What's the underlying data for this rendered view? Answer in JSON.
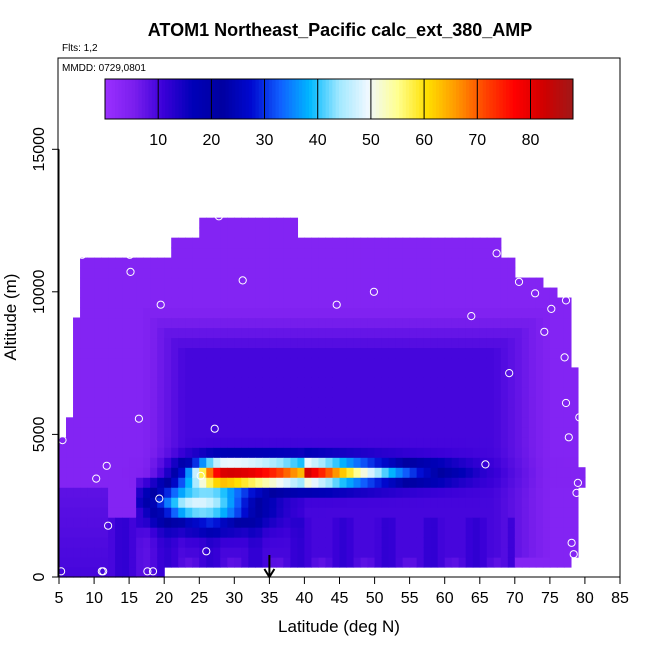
{
  "chart_data": {
    "type": "heatmap",
    "title": "ATOM1 Northeast_Pacific calc_ext_380_AMP",
    "flights_label": "Flts: 1,2",
    "mmdd_label": "MMDD: 0729,0801",
    "xlabel": "Latitude (deg N)",
    "ylabel": "Altitude (m)",
    "xlim": [
      5,
      85
    ],
    "ylim": [
      0,
      18200
    ],
    "x_ticks": [
      "5",
      "10",
      "15",
      "20",
      "25",
      "30",
      "35",
      "40",
      "45",
      "50",
      "55",
      "60",
      "65",
      "70",
      "75",
      "80",
      "85"
    ],
    "y_ticks": [
      "0",
      "5000",
      "10000",
      "15000"
    ],
    "colorbar": {
      "range": [
        0,
        88
      ],
      "ticks": [
        "10",
        "20",
        "30",
        "40",
        "50",
        "60",
        "70",
        "80"
      ],
      "colors": [
        "#9b30ff",
        "#7a1fee",
        "#3a00d8",
        "#0000b8",
        "#0000a0",
        "#0008d0",
        "#1060ff",
        "#00b8ff",
        "#a0e8ff",
        "#f0f8ff",
        "#ffff90",
        "#ffe000",
        "#ff9900",
        "#ff4400",
        "#ff0000",
        "#d00000",
        "#a01818"
      ]
    },
    "arrow_latitude": 35,
    "cell_size": {
      "dlat": 1,
      "dalt": 350
    },
    "field": {
      "description": "extinction values on latitude/altitude grid",
      "layer_center_alt": 3650,
      "layer_peak_value": 82,
      "layer_peak_lat": 29,
      "background_low": 4,
      "background_mid": 12
    },
    "points": [
      [
        5.3,
        200
      ],
      [
        11.1,
        200
      ],
      [
        11.3,
        200
      ],
      [
        17.6,
        200
      ],
      [
        18.4,
        200
      ],
      [
        26.0,
        900
      ],
      [
        12.0,
        1800
      ],
      [
        78.1,
        1200
      ],
      [
        78.4,
        800
      ],
      [
        19.3,
        2750
      ],
      [
        78.8,
        2950
      ],
      [
        79.0,
        3300
      ],
      [
        10.3,
        3450
      ],
      [
        25.2,
        3550
      ],
      [
        11.8,
        3900
      ],
      [
        65.8,
        3950
      ],
      [
        5.5,
        4800
      ],
      [
        77.7,
        4900
      ],
      [
        27.2,
        5200
      ],
      [
        16.4,
        5550
      ],
      [
        79.2,
        5600
      ],
      [
        77.3,
        6100
      ],
      [
        69.2,
        7150
      ],
      [
        77.1,
        7700
      ],
      [
        74.2,
        8600
      ],
      [
        63.8,
        9150
      ],
      [
        75.2,
        9400
      ],
      [
        19.5,
        9550
      ],
      [
        44.6,
        9550
      ],
      [
        77.3,
        9700
      ],
      [
        72.9,
        9950
      ],
      [
        49.9,
        10000
      ],
      [
        70.6,
        10350
      ],
      [
        31.2,
        10400
      ],
      [
        15.2,
        10700
      ],
      [
        8.3,
        11300
      ],
      [
        15.1,
        11300
      ],
      [
        67.4,
        11350
      ],
      [
        27.8,
        12650
      ]
    ]
  }
}
